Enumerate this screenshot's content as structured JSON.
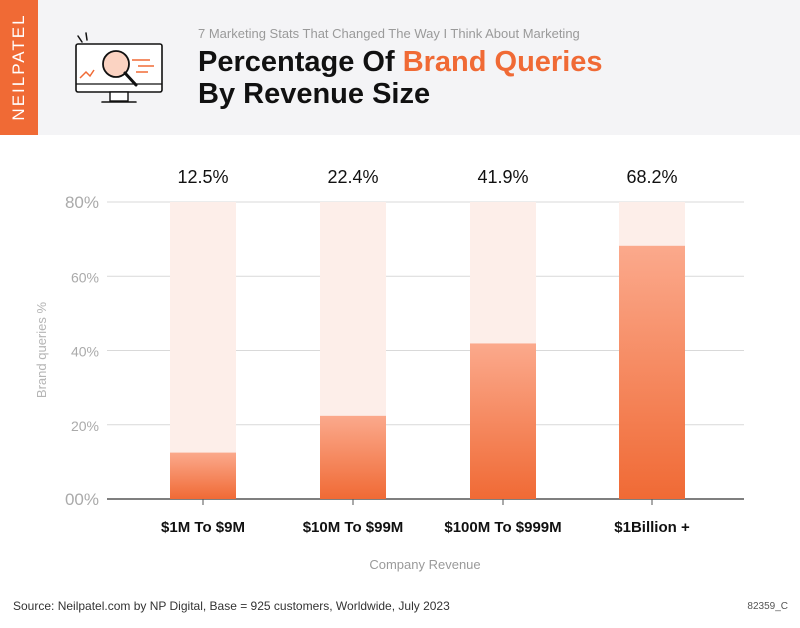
{
  "brand": {
    "name": "NEILPATEL"
  },
  "header": {
    "subtitle": "7 Marketing Stats That Changed The Way I Think About Marketing",
    "title_part1": "Percentage Of ",
    "title_highlight": "Brand Queries",
    "title_part2": "By Revenue Size"
  },
  "chart_data": {
    "type": "bar",
    "title": "Percentage Of Brand Queries By Revenue Size",
    "categories": [
      "$1M To $9M",
      "$10M To $99M",
      "$100M To $999M",
      "$1Billion +"
    ],
    "values": [
      12.5,
      22.4,
      41.9,
      68.2
    ],
    "value_labels": [
      "12.5%",
      "22.4%",
      "41.9%",
      "68.2%"
    ],
    "xlabel": "Company Revenue",
    "ylabel": "Brand queries %",
    "ylim": [
      0,
      80
    ],
    "yticks": [
      0,
      20,
      40,
      60,
      80
    ],
    "ytick_labels": [
      "00%",
      "20%",
      "40%",
      "60%",
      "80%"
    ],
    "grid": true,
    "colors": {
      "bar_top": "#fba98c",
      "bar_bottom": "#f06a35",
      "bar_track": "#fdeee9",
      "grid": "#d9d9d9",
      "axis": "#555555"
    }
  },
  "footer": {
    "source": "Source: Neilpatel.com by NP Digital, Base = 925 customers, Worldwide, July 2023",
    "code": "82359_C"
  },
  "colors": {
    "accent": "#f06a35",
    "header_bg": "#f4f4f6",
    "title": "#111111"
  }
}
